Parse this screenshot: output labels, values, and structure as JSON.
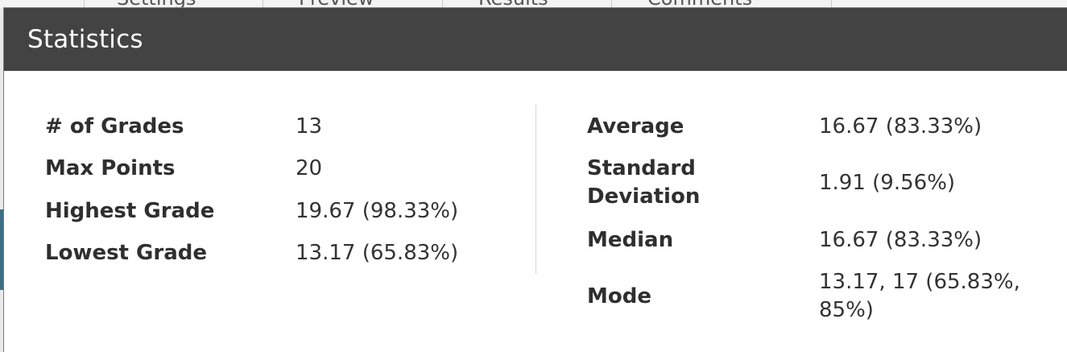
{
  "background": {
    "tabs": [
      "Settings",
      "Preview",
      "Results",
      "Comments"
    ]
  },
  "dialog": {
    "title": "Statistics"
  },
  "stats": {
    "left": [
      {
        "label": "# of Grades",
        "value": "13"
      },
      {
        "label": "Max Points",
        "value": "20"
      },
      {
        "label": "Highest Grade",
        "value": "19.67 (98.33%)"
      },
      {
        "label": "Lowest Grade",
        "value": "13.17 (65.83%)"
      }
    ],
    "right": [
      {
        "label": "Average",
        "value": "16.67 (83.33%)"
      },
      {
        "label": "Standard Deviation",
        "value": "1.91 (9.56%)"
      },
      {
        "label": "Median",
        "value": "16.67 (83.33%)"
      },
      {
        "label": "Mode",
        "value": "13.17, 17 (65.83%, 85%)"
      }
    ]
  }
}
